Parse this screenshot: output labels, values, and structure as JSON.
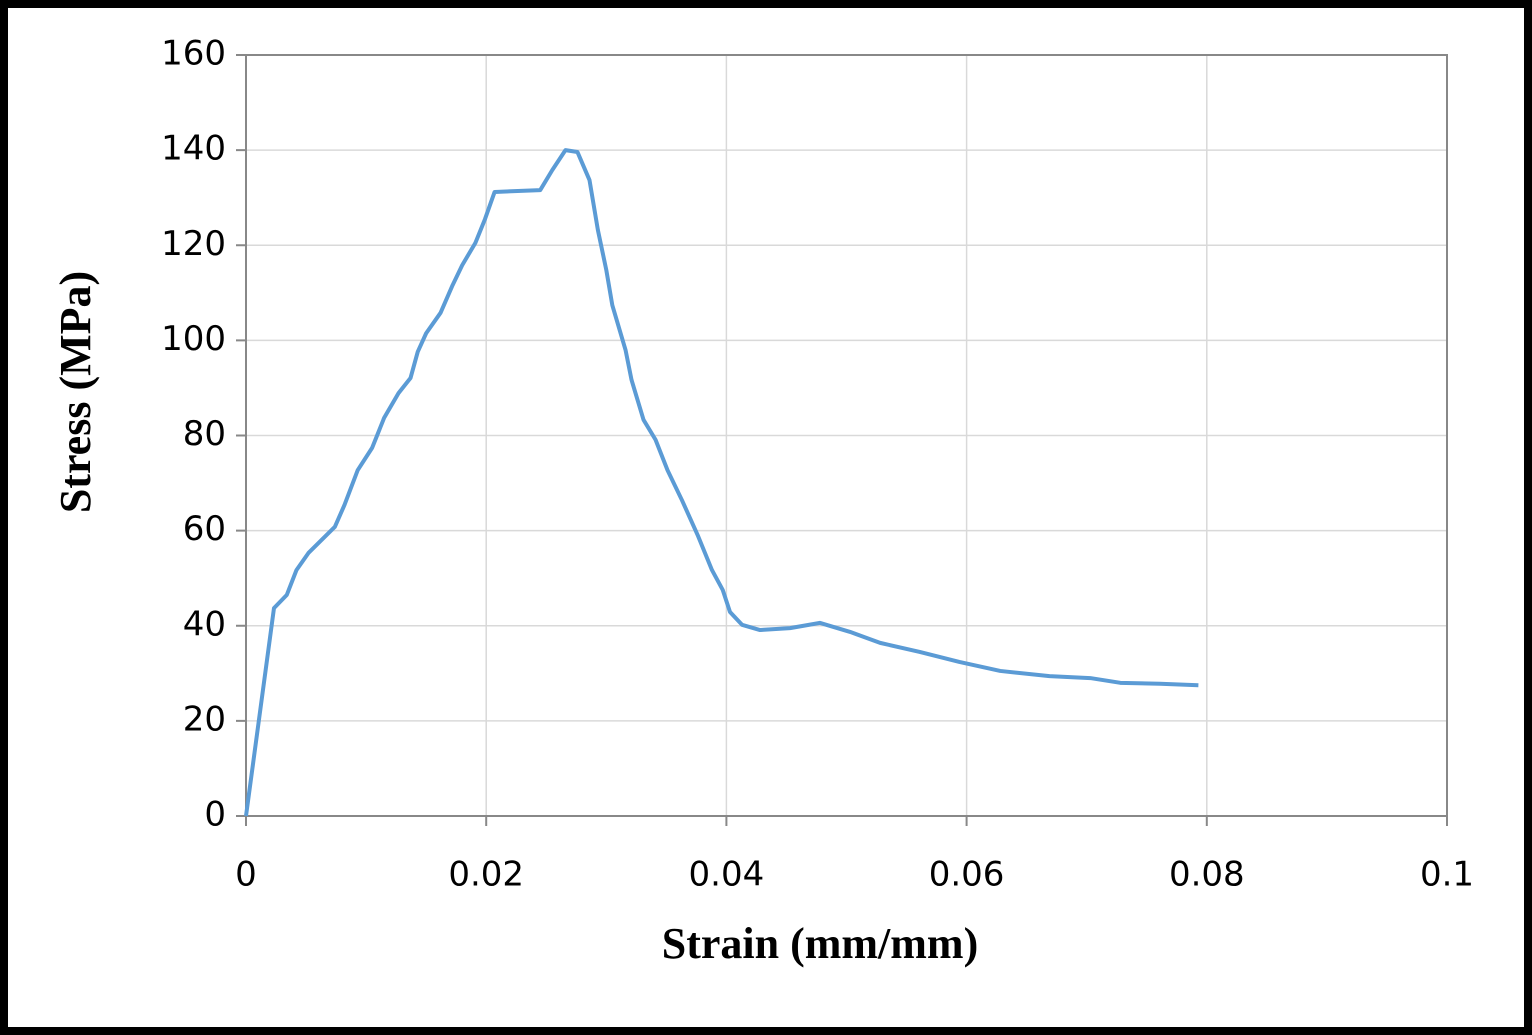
{
  "chart_data": {
    "type": "line",
    "x_label": "Strain (mm/mm)",
    "y_label": "Stress (MPa)",
    "x": [
      0,
      0.00233,
      0.0034,
      0.0042,
      0.0052,
      0.0062,
      0.0074,
      0.0082,
      0.0093,
      0.0105,
      0.0115,
      0.0127,
      0.0137,
      0.0143,
      0.015,
      0.0162,
      0.0172,
      0.018,
      0.0191,
      0.0199,
      0.0207,
      0.0245,
      0.0255,
      0.0266,
      0.0276,
      0.0286,
      0.0293,
      0.03,
      0.0305,
      0.0316,
      0.0321,
      0.0331,
      0.0341,
      0.0351,
      0.0363,
      0.0376,
      0.0388,
      0.0397,
      0.0403,
      0.0413,
      0.0428,
      0.0453,
      0.0478,
      0.0503,
      0.0528,
      0.0561,
      0.0594,
      0.0628,
      0.0669,
      0.0703,
      0.0728,
      0.0761,
      0.0793
    ],
    "values": [
      0,
      43.7,
      46.5,
      51.7,
      55.3,
      57.8,
      60.8,
      65.4,
      72.7,
      77.4,
      83.7,
      88.9,
      92.1,
      97.6,
      101.5,
      105.8,
      111.6,
      115.8,
      120.5,
      125.5,
      131.2,
      131.6,
      135.8,
      140.0,
      139.6,
      133.7,
      123.2,
      114.8,
      107.4,
      98.0,
      91.7,
      83.3,
      79.1,
      72.7,
      66.4,
      59.1,
      51.7,
      47.5,
      42.9,
      40.2,
      39.1,
      39.5,
      40.6,
      38.7,
      36.4,
      34.5,
      32.4,
      30.5,
      29.4,
      29.0,
      28.0,
      27.8,
      27.5
    ],
    "color": "#5b9bd5",
    "xlim": [
      0,
      0.1
    ],
    "xticks": [
      0,
      0.02,
      0.04,
      0.06,
      0.08,
      0.1
    ],
    "ylim": [
      0,
      160
    ],
    "yticks": [
      0,
      20,
      40,
      60,
      80,
      100,
      120,
      140,
      160
    ],
    "grid": true
  }
}
